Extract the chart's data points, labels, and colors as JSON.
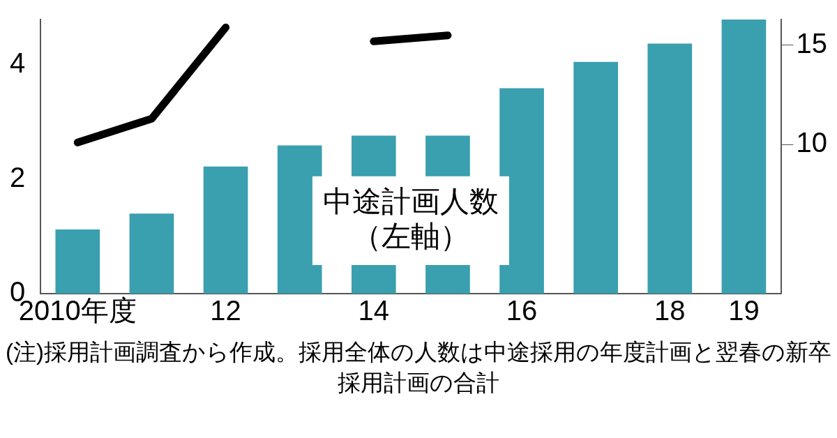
{
  "chart_data": {
    "type": "bar",
    "categories": [
      "2010年度",
      null,
      "12",
      null,
      "14",
      null,
      "16",
      null,
      "18",
      "19"
    ],
    "series": [
      {
        "name": "中途計画人数（左軸）",
        "color": "#3a9fae",
        "values": [
          1.12,
          1.4,
          2.22,
          2.59,
          2.76,
          2.76,
          3.59,
          4.05,
          4.37,
          4.79
        ]
      },
      {
        "type": "line",
        "axis": "y2",
        "color": "#000000",
        "values": [
          10.1,
          11.3,
          15.9,
          null,
          15.2,
          15.5,
          null,
          null,
          null,
          null
        ]
      }
    ],
    "ylim": [
      0,
      4.79
    ],
    "yticks": [
      0,
      2,
      4
    ],
    "y2lim": [
      2.48,
      16.3
    ],
    "y2ticks": [
      10,
      15
    ],
    "grid": false,
    "legend": false,
    "marker": "none",
    "line_style": "solid",
    "annotations": [
      "(注)採用計画調査から作成。採用全体の人数は中途採用の年度計画と翌春の新卒採用計画の合計"
    ]
  }
}
